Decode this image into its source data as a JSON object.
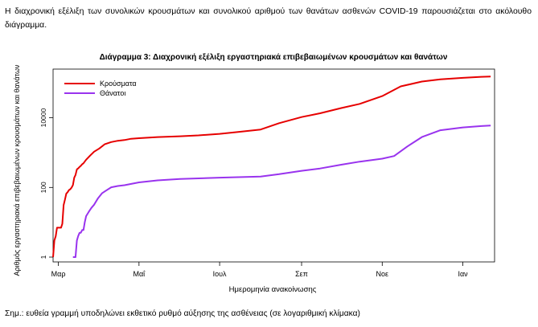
{
  "intro_text": "Η διαχρονική εξέλιξη των συνολικών κρουσμάτων και συνολικού αριθμού των θανάτων ασθενών COVID-19 παρουσιάζεται στο ακόλουθο διάγραμμα.",
  "note": "Σημ.: ευθεία γραμμή υποδηλώνει εκθετικό ρυθμό αύξησης της ασθένειας (σε λογαριθμική κλίμακα)",
  "chart_data": {
    "type": "line",
    "title": "Διάγραμμα 3: Διαχρονική εξέλιξη εργαστηριακά επιβεβαιωμένων κρουσμάτων και θανάτων",
    "xlabel": "Ημερομηνία ανακοίνωσης",
    "ylabel": "Αριθμός εργαστηριακά επιβεβαιωμένων κρουσμάτων και θανάτων",
    "y_scale": "log",
    "ylim": [
      1,
      250000
    ],
    "yticks": [
      1,
      100,
      10000
    ],
    "ytick_labels": [
      "1",
      "100",
      "10000"
    ],
    "xlim": [
      "2020-02-26",
      "2021-01-25"
    ],
    "xticks": [
      "2020-03-01",
      "2020-05-01",
      "2020-07-01",
      "2020-09-01",
      "2020-11-01",
      "2021-01-01"
    ],
    "xtick_labels": [
      "Μαρ",
      "Μαΐ",
      "Ιουλ",
      "Σεπ",
      "Νοε",
      "Ιαν"
    ],
    "legend_position": "top-left",
    "series": [
      {
        "name": "Κρούσματα",
        "color": "#e60000",
        "points": [
          [
            "2020-02-26",
            1
          ],
          [
            "2020-02-27",
            3
          ],
          [
            "2020-02-28",
            4
          ],
          [
            "2020-02-29",
            7
          ],
          [
            "2020-03-01",
            7
          ],
          [
            "2020-03-03",
            7
          ],
          [
            "2020-03-04",
            9
          ],
          [
            "2020-03-05",
            31
          ],
          [
            "2020-03-06",
            45
          ],
          [
            "2020-03-07",
            66
          ],
          [
            "2020-03-08",
            73
          ],
          [
            "2020-03-09",
            84
          ],
          [
            "2020-03-10",
            89
          ],
          [
            "2020-03-11",
            99
          ],
          [
            "2020-03-12",
            117
          ],
          [
            "2020-03-13",
            190
          ],
          [
            "2020-03-14",
            228
          ],
          [
            "2020-03-15",
            331
          ],
          [
            "2020-03-16",
            352
          ],
          [
            "2020-03-17",
            387
          ],
          [
            "2020-03-18",
            418
          ],
          [
            "2020-03-19",
            464
          ],
          [
            "2020-03-20",
            495
          ],
          [
            "2020-03-22",
            624
          ],
          [
            "2020-03-25",
            821
          ],
          [
            "2020-03-28",
            1061
          ],
          [
            "2020-04-01",
            1314
          ],
          [
            "2020-04-05",
            1735
          ],
          [
            "2020-04-10",
            2011
          ],
          [
            "2020-04-15",
            2192
          ],
          [
            "2020-04-20",
            2300
          ],
          [
            "2020-04-25",
            2500
          ],
          [
            "2020-05-01",
            2600
          ],
          [
            "2020-05-15",
            2800
          ],
          [
            "2020-06-01",
            2950
          ],
          [
            "2020-06-15",
            3120
          ],
          [
            "2020-07-01",
            3450
          ],
          [
            "2020-07-15",
            3900
          ],
          [
            "2020-08-01",
            4600
          ],
          [
            "2020-08-15",
            7000
          ],
          [
            "2020-09-01",
            10500
          ],
          [
            "2020-09-15",
            13500
          ],
          [
            "2020-10-01",
            19000
          ],
          [
            "2020-10-15",
            25000
          ],
          [
            "2020-11-01",
            42000
          ],
          [
            "2020-11-15",
            80000
          ],
          [
            "2020-12-01",
            110000
          ],
          [
            "2020-12-15",
            127000
          ],
          [
            "2021-01-01",
            140000
          ],
          [
            "2021-01-15",
            150000
          ],
          [
            "2021-01-22",
            153000
          ]
        ]
      },
      {
        "name": "Θάνατοι",
        "color": "#9933ee",
        "points": [
          [
            "2020-03-12",
            1
          ],
          [
            "2020-03-14",
            1
          ],
          [
            "2020-03-15",
            3
          ],
          [
            "2020-03-16",
            4
          ],
          [
            "2020-03-17",
            5
          ],
          [
            "2020-03-18",
            5
          ],
          [
            "2020-03-19",
            6
          ],
          [
            "2020-03-20",
            6
          ],
          [
            "2020-03-21",
            10
          ],
          [
            "2020-03-22",
            15
          ],
          [
            "2020-03-24",
            20
          ],
          [
            "2020-03-26",
            26
          ],
          [
            "2020-03-28",
            32
          ],
          [
            "2020-03-31",
            49
          ],
          [
            "2020-04-03",
            68
          ],
          [
            "2020-04-06",
            81
          ],
          [
            "2020-04-10",
            101
          ],
          [
            "2020-04-15",
            110
          ],
          [
            "2020-04-20",
            116
          ],
          [
            "2020-05-01",
            140
          ],
          [
            "2020-05-15",
            160
          ],
          [
            "2020-06-01",
            175
          ],
          [
            "2020-07-01",
            191
          ],
          [
            "2020-08-01",
            206
          ],
          [
            "2020-08-15",
            240
          ],
          [
            "2020-09-01",
            300
          ],
          [
            "2020-09-15",
            350
          ],
          [
            "2020-10-01",
            450
          ],
          [
            "2020-10-15",
            550
          ],
          [
            "2020-11-01",
            670
          ],
          [
            "2020-11-10",
            800
          ],
          [
            "2020-11-20",
            1500
          ],
          [
            "2020-12-01",
            2800
          ],
          [
            "2020-12-15",
            4400
          ],
          [
            "2021-01-01",
            5300
          ],
          [
            "2021-01-15",
            5800
          ],
          [
            "2021-01-22",
            6000
          ]
        ]
      }
    ]
  }
}
